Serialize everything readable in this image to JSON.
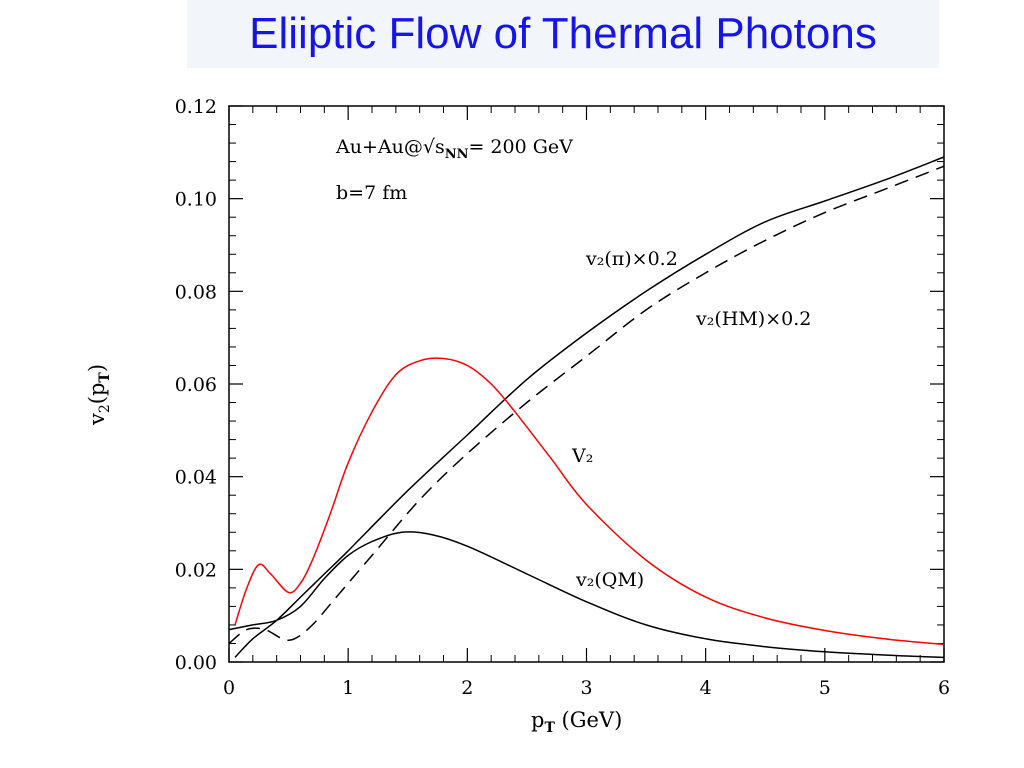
{
  "title": "Eliiptic Flow of Thermal Photons",
  "chart_data": {
    "type": "line",
    "xlabel": {
      "main": "p",
      "sub": "T",
      "rest": " (GeV)"
    },
    "ylabel": {
      "main": "v",
      "sub": "2",
      "rest": "(p",
      "sub2": "T",
      "close": ")"
    },
    "xlim": [
      0,
      6
    ],
    "ylim": [
      0,
      0.12
    ],
    "xticks": [
      0,
      1,
      2,
      3,
      4,
      5,
      6
    ],
    "yticks": [
      0.0,
      0.02,
      0.04,
      0.06,
      0.08,
      0.1,
      0.12
    ],
    "ytick_labels": [
      "0.00",
      "0.02",
      "0.04",
      "0.06",
      "0.08",
      "0.10",
      "0.12"
    ],
    "xtick_labels": [
      "0",
      "1",
      "2",
      "3",
      "4",
      "5",
      "6"
    ],
    "grid": false,
    "annotations": {
      "system": "Au+Au@√s",
      "system_sub": "NN",
      "system_rest": "= 200 GeV",
      "impact": "b=7 fm",
      "label_pi": "v₂(π)×0.2",
      "label_hm": "v₂(HM)×0.2",
      "label_v2": "V₂",
      "label_qm": "v₂(QM)"
    },
    "series": [
      {
        "name": "v₂(π)×0.2",
        "color": "#000000",
        "dash": "solid",
        "x": [
          0.05,
          0.2,
          0.4,
          0.6,
          0.8,
          1.0,
          1.5,
          2.0,
          2.5,
          3.0,
          3.5,
          4.0,
          4.5,
          5.0,
          5.5,
          6.0
        ],
        "y": [
          0.001,
          0.005,
          0.009,
          0.014,
          0.019,
          0.024,
          0.037,
          0.049,
          0.061,
          0.071,
          0.08,
          0.088,
          0.095,
          0.0995,
          0.104,
          0.109
        ]
      },
      {
        "name": "v₂(HM)×0.2",
        "color": "#000000",
        "dash": "dashed",
        "x": [
          0.0,
          0.15,
          0.3,
          0.45,
          0.55,
          0.7,
          0.9,
          1.2,
          1.6,
          2.0,
          2.5,
          3.0,
          3.5,
          4.0,
          4.5,
          5.0,
          5.5,
          6.0
        ],
        "y": [
          0.004,
          0.007,
          0.007,
          0.005,
          0.005,
          0.008,
          0.014,
          0.023,
          0.035,
          0.045,
          0.056,
          0.066,
          0.076,
          0.084,
          0.091,
          0.097,
          0.102,
          0.107
        ]
      },
      {
        "name": "V₂",
        "color": "#ff0000",
        "dash": "solid",
        "x": [
          0.05,
          0.15,
          0.25,
          0.35,
          0.5,
          0.6,
          0.7,
          0.85,
          1.0,
          1.2,
          1.4,
          1.6,
          1.8,
          2.0,
          2.2,
          2.4,
          2.7,
          3.0,
          3.5,
          4.0,
          4.5,
          5.0,
          5.5,
          6.0
        ],
        "y": [
          0.008,
          0.016,
          0.021,
          0.019,
          0.015,
          0.017,
          0.022,
          0.032,
          0.043,
          0.054,
          0.062,
          0.065,
          0.0655,
          0.064,
          0.06,
          0.054,
          0.044,
          0.034,
          0.022,
          0.014,
          0.0095,
          0.0068,
          0.005,
          0.0038
        ]
      },
      {
        "name": "v₂(QM)",
        "color": "#000000",
        "dash": "solid",
        "x": [
          0.0,
          0.2,
          0.4,
          0.6,
          0.8,
          1.0,
          1.2,
          1.45,
          1.7,
          2.0,
          2.5,
          3.0,
          3.5,
          4.0,
          4.5,
          5.0,
          5.5,
          6.0
        ],
        "y": [
          0.007,
          0.008,
          0.009,
          0.012,
          0.018,
          0.023,
          0.026,
          0.028,
          0.0275,
          0.025,
          0.019,
          0.013,
          0.008,
          0.005,
          0.0033,
          0.0022,
          0.0015,
          0.001
        ]
      }
    ]
  }
}
